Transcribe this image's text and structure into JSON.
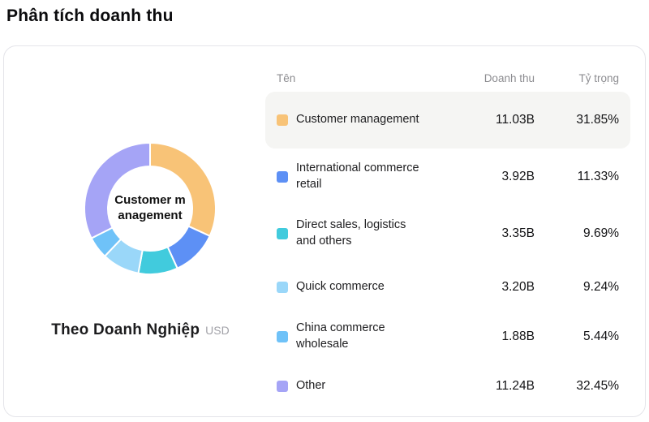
{
  "header": {
    "title": "Phân tích doanh thu"
  },
  "table": {
    "headers": [
      "Tên",
      "Doanh thu",
      "Tỷ trọng"
    ]
  },
  "palette": {
    "row_highlight": "#f5f5f3",
    "card_border": "#e4e4e9",
    "header_text": "#8c8c90",
    "title_text": "#0b0b0d"
  },
  "chart_data": {
    "type": "pie",
    "title": "Phân tích doanh thu",
    "caption": "Theo Doanh Nghiệp",
    "unit": "USD",
    "center_label": "Customer management",
    "legend_position": "right-table",
    "donut": true,
    "segments": [
      {
        "label": "Customer management",
        "revenue": "11.03B",
        "share_pct": 31.85,
        "color": "#f8c377"
      },
      {
        "label": "International commerce retail",
        "revenue": "3.92B",
        "share_pct": 11.33,
        "color": "#5d90f5"
      },
      {
        "label": "Direct sales, logistics and others",
        "revenue": "3.35B",
        "share_pct": 9.69,
        "color": "#41cbdd"
      },
      {
        "label": "Quick commerce",
        "revenue": "3.20B",
        "share_pct": 9.24,
        "color": "#9ad7f9"
      },
      {
        "label": "China commerce wholesale",
        "revenue": "1.88B",
        "share_pct": 5.44,
        "color": "#6fc2f8"
      },
      {
        "label": "Other",
        "revenue": "11.24B",
        "share_pct": 32.45,
        "color": "#a5a4f6"
      }
    ]
  }
}
